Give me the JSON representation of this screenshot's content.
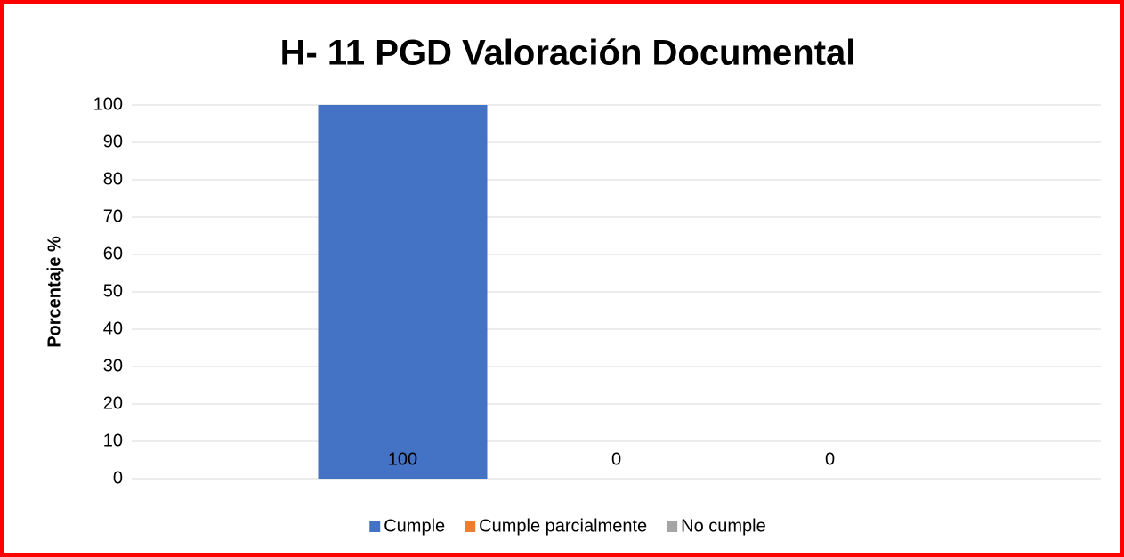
{
  "chart_data": {
    "type": "bar",
    "title": "H- 11 PGD Valoración Documental",
    "y_label": "Porcentaje %",
    "categories": [
      null
    ],
    "series": [
      {
        "name": "Cumple",
        "color": "#4472c4",
        "values": [
          100
        ]
      },
      {
        "name": "Cumple parcialmente",
        "color": "#ed7d31",
        "values": [
          0
        ]
      },
      {
        "name": "No cumple",
        "color": "#a5a5a5",
        "values": [
          0
        ]
      }
    ],
    "ylim": [
      0,
      100
    ],
    "yticks": [
      0,
      10,
      20,
      30,
      40,
      50,
      60,
      70,
      80,
      90,
      100
    ],
    "grid": true,
    "legend": "bottom",
    "data_labels": true
  }
}
